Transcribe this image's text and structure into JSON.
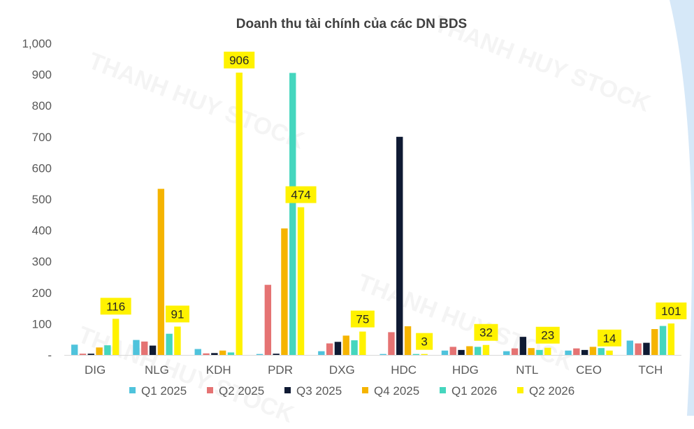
{
  "chart_data": {
    "type": "bar",
    "title": "Doanh thu tài chính của các DN BDS",
    "ylabel": "",
    "ylim": [
      0,
      1000
    ],
    "yticks": [
      "-",
      "100",
      "200",
      "300",
      "400",
      "500",
      "600",
      "700",
      "800",
      "900",
      "1,000"
    ],
    "grid": false,
    "legend_position": "bottom",
    "categories": [
      "DIG",
      "NLG",
      "KDH",
      "PDR",
      "DXG",
      "HDC",
      "HDG",
      "NTL",
      "CEO",
      "TCH"
    ],
    "series": [
      {
        "name": "Q1 2025",
        "color": "#4FC3DC",
        "values": [
          33,
          48,
          19,
          3,
          12,
          3,
          14,
          12,
          14,
          46
        ]
      },
      {
        "name": "Q2 2025",
        "color": "#E57373",
        "values": [
          4,
          43,
          5,
          225,
          37,
          73,
          26,
          21,
          21,
          37
        ]
      },
      {
        "name": "Q3 2025",
        "color": "#0F1A33",
        "values": [
          4,
          30,
          6,
          4,
          42,
          700,
          16,
          58,
          16,
          39
        ]
      },
      {
        "name": "Q4 2025",
        "color": "#F5B400",
        "values": [
          24,
          533,
          14,
          406,
          62,
          92,
          28,
          22,
          26,
          83
        ]
      },
      {
        "name": "Q1 2026",
        "color": "#45D6BE",
        "values": [
          31,
          68,
          8,
          905,
          47,
          3,
          26,
          16,
          22,
          93
        ]
      },
      {
        "name": "Q2 2026",
        "color": "#FFF200",
        "values": [
          116,
          91,
          906,
          474,
          75,
          3,
          32,
          23,
          14,
          101
        ]
      }
    ],
    "data_labels": {
      "series": "Q2 2026",
      "values": [
        "116",
        "91",
        "906",
        "474",
        "75",
        "3",
        "32",
        "23",
        "14",
        "101"
      ]
    }
  },
  "watermark": "THANH HUY STOCK",
  "colors": {
    "axis": "#d9d9d9",
    "text": "#595959",
    "title": "#404040",
    "label_bg": "#FFF200",
    "decor": "#d6e8f8"
  }
}
